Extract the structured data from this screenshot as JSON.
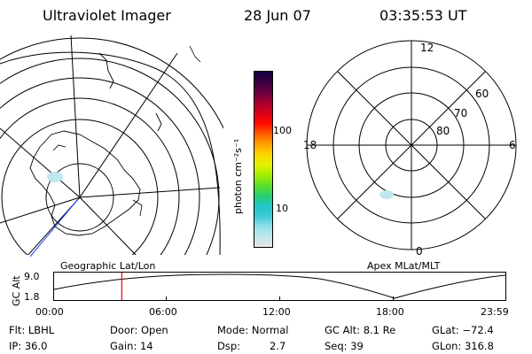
{
  "header": {
    "instrument": "Ultraviolet Imager",
    "date": "28 Jun 07",
    "time": "03:35:53 UT"
  },
  "colorbar": {
    "label": "photon cm⁻²s⁻¹",
    "ticks": [
      "100",
      "10"
    ],
    "colors": [
      "#e6e6e6",
      "#bfe7ee",
      "#8fe0ea",
      "#3cc9d6",
      "#1fc7c7",
      "#2ad06a",
      "#5fe02a",
      "#a6ef00",
      "#e4f200",
      "#ffd400",
      "#ff9f00",
      "#ff5a00",
      "#ff0a00",
      "#d8001c",
      "#a4002f",
      "#6a0040",
      "#3a0043",
      "#140040"
    ]
  },
  "geo_map": {
    "label": "Geographic Lat/Lon"
  },
  "polar_map": {
    "label": "Apex MLat/MLT",
    "mlt_labels": {
      "top": "12",
      "left": "18",
      "right": "6",
      "bottom": "0"
    },
    "lat_labels": [
      "60",
      "70",
      "80"
    ]
  },
  "altitude_plot": {
    "ylabel": "GC Alt",
    "yticks": [
      "9.0",
      "1.8"
    ],
    "xticks": [
      "00:00",
      "06:00",
      "12:00",
      "18:00",
      "23:59"
    ],
    "current_time_hours": 3.6,
    "trace_color": "#000000",
    "marker_color": "#ff0000"
  },
  "info": {
    "flt": "Flt: LBHL",
    "ip": "IP: 36.0",
    "door": "Door: Open",
    "gain": "Gain: 14",
    "mode": "Mode: Normal",
    "dsp_label": "Dsp:",
    "dsp_value": "2.7",
    "gc_alt": "GC Alt: 8.1 Re",
    "seq": "Seq: 39",
    "glat": "GLat: −72.4",
    "glon": "GLon: 316.8"
  }
}
